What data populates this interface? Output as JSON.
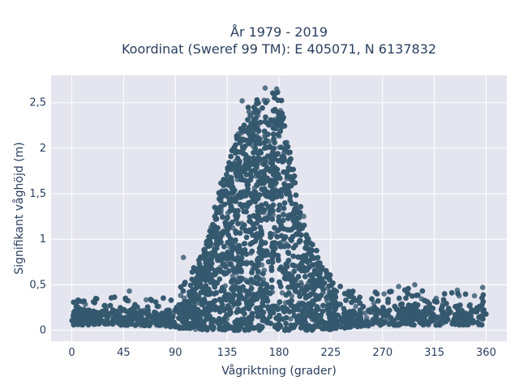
{
  "chart_data": {
    "type": "scatter",
    "title_line1": "År 1979 - 2019",
    "title_line2": "Koordinat (Sweref 99 TM): E 405071, N 6137832",
    "xlabel": "Vågriktning (grader)",
    "ylabel": "Signifikant våghöjd (m)",
    "xlim": [
      -18,
      378
    ],
    "ylim": [
      -0.12,
      2.8
    ],
    "x_ticks": [
      {
        "value": 0,
        "label": "0"
      },
      {
        "value": 45,
        "label": "45"
      },
      {
        "value": 90,
        "label": "90"
      },
      {
        "value": 135,
        "label": "135"
      },
      {
        "value": 180,
        "label": "180"
      },
      {
        "value": 225,
        "label": "225"
      },
      {
        "value": 270,
        "label": "270"
      },
      {
        "value": 315,
        "label": "315"
      },
      {
        "value": 360,
        "label": "360"
      }
    ],
    "y_ticks": [
      {
        "value": 0,
        "label": "0"
      },
      {
        "value": 0.5,
        "label": "0,5"
      },
      {
        "value": 1,
        "label": "1"
      },
      {
        "value": 1.5,
        "label": "1,5"
      },
      {
        "value": 2,
        "label": "2"
      },
      {
        "value": 2.5,
        "label": "2,5"
      }
    ],
    "grid": true,
    "colors": {
      "marker": "#34586e",
      "plot_bg": "#e5e5f0",
      "grid": "#ffffff",
      "text": "#2a3f5f"
    },
    "envelope": [
      {
        "x": 0,
        "y": 0.35
      },
      {
        "x": 30,
        "y": 0.38
      },
      {
        "x": 60,
        "y": 0.36
      },
      {
        "x": 75,
        "y": 0.34
      },
      {
        "x": 90,
        "y": 0.42
      },
      {
        "x": 100,
        "y": 0.58
      },
      {
        "x": 110,
        "y": 0.78
      },
      {
        "x": 120,
        "y": 1.15
      },
      {
        "x": 130,
        "y": 1.65
      },
      {
        "x": 140,
        "y": 2.15
      },
      {
        "x": 150,
        "y": 2.45
      },
      {
        "x": 160,
        "y": 2.55
      },
      {
        "x": 167,
        "y": 2.67
      },
      {
        "x": 175,
        "y": 2.62
      },
      {
        "x": 180,
        "y": 2.67
      },
      {
        "x": 185,
        "y": 2.52
      },
      {
        "x": 190,
        "y": 2.0
      },
      {
        "x": 200,
        "y": 1.35
      },
      {
        "x": 210,
        "y": 0.95
      },
      {
        "x": 220,
        "y": 0.72
      },
      {
        "x": 230,
        "y": 0.55
      },
      {
        "x": 240,
        "y": 0.48
      },
      {
        "x": 255,
        "y": 0.43
      },
      {
        "x": 270,
        "y": 0.42
      },
      {
        "x": 285,
        "y": 0.47
      },
      {
        "x": 300,
        "y": 0.5
      },
      {
        "x": 315,
        "y": 0.38
      },
      {
        "x": 330,
        "y": 0.42
      },
      {
        "x": 345,
        "y": 0.47
      },
      {
        "x": 360,
        "y": 0.4
      }
    ],
    "baseline": [
      {
        "x": 0,
        "y": 0.06
      },
      {
        "x": 80,
        "y": 0.05
      },
      {
        "x": 95,
        "y": 0.02
      },
      {
        "x": 120,
        "y": 0.0
      },
      {
        "x": 220,
        "y": 0.0
      },
      {
        "x": 240,
        "y": 0.03
      },
      {
        "x": 260,
        "y": 0.05
      },
      {
        "x": 360,
        "y": 0.06
      }
    ],
    "outliers": [
      {
        "x": 97,
        "y": 0.8
      },
      {
        "x": 148,
        "y": 2.52
      },
      {
        "x": 154,
        "y": 2.4
      },
      {
        "x": 168,
        "y": 2.66
      },
      {
        "x": 178,
        "y": 2.65
      },
      {
        "x": 50,
        "y": 0.43
      },
      {
        "x": 284,
        "y": 0.48
      },
      {
        "x": 298,
        "y": 0.5
      },
      {
        "x": 335,
        "y": 0.44
      },
      {
        "x": 357,
        "y": 0.47
      }
    ]
  }
}
